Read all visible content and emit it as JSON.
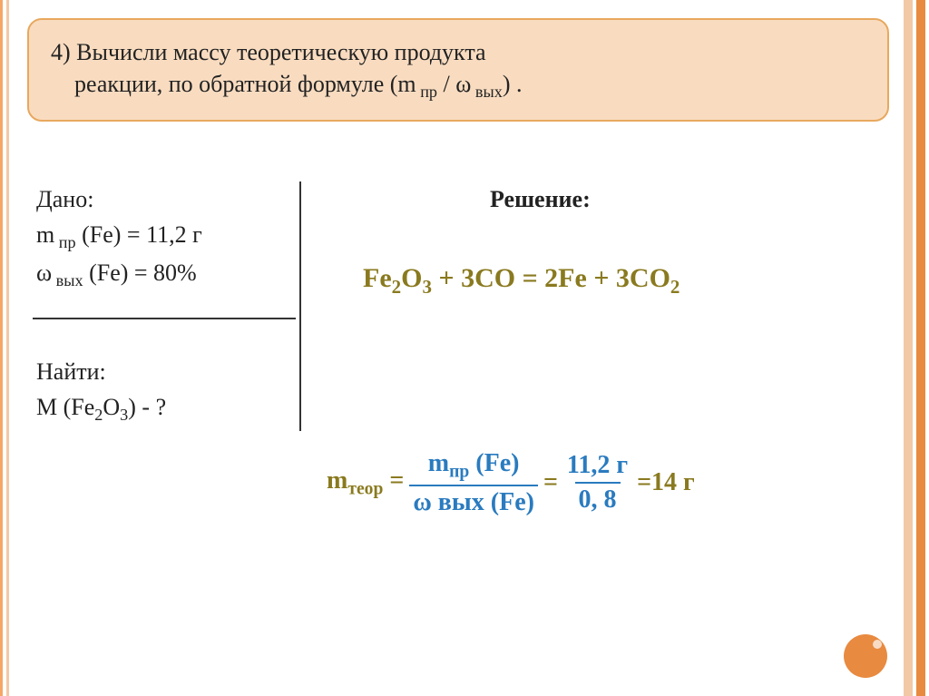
{
  "colors": {
    "box_bg": "#f9dcc0",
    "box_border": "#e8a85e",
    "olive": "#8a7a1f",
    "blue": "#2a7bbf",
    "left_stripes": [
      "#f5a765",
      "#ffffff",
      "#f2c9a6"
    ],
    "right_stripes": [
      "#f2c9a6",
      "#ffffff",
      "#e88a40",
      "#ffffff"
    ],
    "right_widths": [
      10,
      4,
      10,
      4
    ],
    "circle": "#e88a40"
  },
  "title": {
    "num": "4)",
    "line1": "Вычисли массу теоретическую продукта",
    "line2_a": "реакции, по обратной формуле (m",
    "line2_sub1": " пр",
    "line2_b": " / ω",
    "line2_sub2": " вых",
    "line2_c": ") ."
  },
  "given": {
    "header": "Дано:",
    "l1a": "m",
    "l1sub": " пр",
    "l1b": " (Fe) = 11,2 г",
    "l2a": "ω",
    "l2sub": " вых",
    "l2b": " (Fe) = 80%"
  },
  "find": {
    "header": "Найти:",
    "l1a": "M (Fe",
    "l1sub1": "2",
    "l1b": "O",
    "l1sub2": "3",
    "l1c": ") - ?"
  },
  "solution_label": "Решение:",
  "equation": {
    "parts": [
      {
        "t": "Fe"
      },
      {
        "t": "2",
        "sub": true
      },
      {
        "t": "O"
      },
      {
        "t": "3",
        "sub": true
      },
      {
        "t": " + 3CO = 2Fe + 3CO"
      },
      {
        "t": "2",
        "sub": true
      }
    ]
  },
  "calc": {
    "lhs_a": "m",
    "lhs_sub": "теор",
    "lhs_b": " = ",
    "num1_a": "m",
    "num1_sub": "пр",
    "num1_b": " (Fe)",
    "den1_a": "ω вых (Fe)",
    "eq1": "= ",
    "num2": "11,2 г",
    "den2": "0, 8",
    "eq2": " =14 г"
  }
}
